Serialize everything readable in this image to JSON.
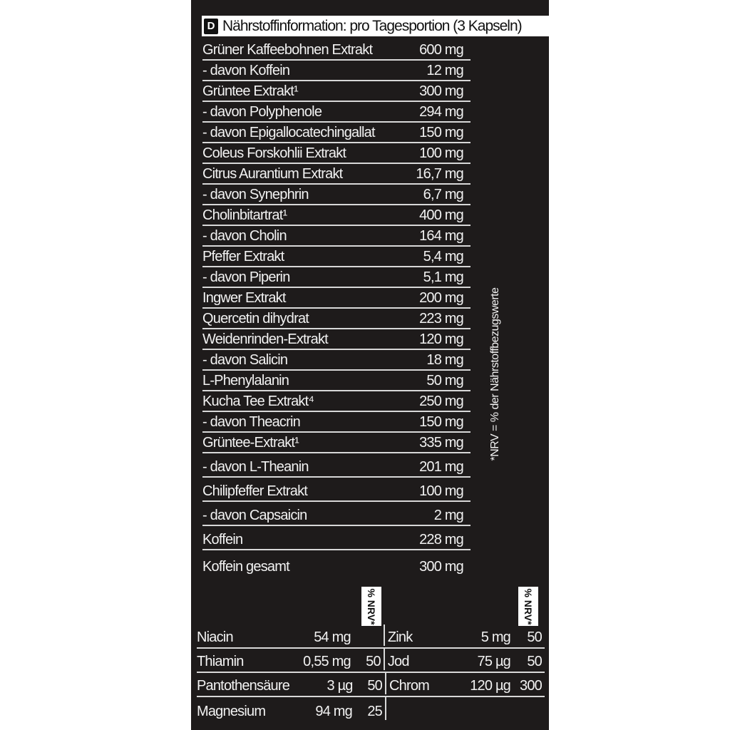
{
  "header": {
    "badge": "D",
    "title": "Nährstoffinformation: pro Tagesportion (3 Kapseln)"
  },
  "ingredients": [
    {
      "name": "Grüner Kaffeebohnen Extrakt",
      "amount": "600 mg"
    },
    {
      "name": " - davon Koffein",
      "amount": "12 mg"
    },
    {
      "name": "Grüntee Extrakt¹",
      "amount": "300 mg"
    },
    {
      "name": " - davon Polyphenole",
      "amount": "294 mg"
    },
    {
      "name": " - davon Epigallocatechingallat",
      "amount": "150 mg"
    },
    {
      "name": "Coleus Forskohlii Extrakt",
      "amount": "100 mg"
    },
    {
      "name": "Citrus Aurantium Extrakt",
      "amount": "16,7 mg"
    },
    {
      "name": " - davon Synephrin",
      "amount": "6,7 mg"
    },
    {
      "name": "Cholinbitartrat¹",
      "amount": "400 mg"
    },
    {
      "name": " - davon Cholin",
      "amount": "164 mg"
    },
    {
      "name": "Pfeffer Extrakt",
      "amount": "5,4 mg"
    },
    {
      "name": " - davon Piperin",
      "amount": "5,1 mg"
    },
    {
      "name": "Ingwer Extrakt",
      "amount": "200 mg"
    },
    {
      "name": "Quercetin dihydrat",
      "amount": "223 mg"
    },
    {
      "name": "Weidenrinden-Extrakt",
      "amount": "120 mg"
    },
    {
      "name": " - davon Salicin",
      "amount": "18 mg"
    },
    {
      "name": "L-Phenylalanin",
      "amount": "50 mg"
    },
    {
      "name": "Kucha Tee Extrakt⁴",
      "amount": "250 mg"
    },
    {
      "name": " - davon Theacrin",
      "amount": "150 mg"
    },
    {
      "name": "Grüntee-Extrakt¹",
      "amount": "335 mg"
    },
    {
      "name": " - davon L-Theanin",
      "amount": "201 mg"
    },
    {
      "name": "Chilipfeffer Extrakt",
      "amount": "100 mg"
    },
    {
      "name": " - davon Capsaicin",
      "amount": "2 mg"
    },
    {
      "name": "Koffein",
      "amount": "228 mg"
    },
    {
      "name": "Koffein gesamt",
      "amount": "300 mg"
    }
  ],
  "nrv_note": "*NRV = % der Nährstoffbezugswerte",
  "nrv_header": "% NRV*",
  "minerals_left": [
    {
      "name": "Niacin",
      "amount": "54 mg",
      "nrv": ""
    },
    {
      "name": "Thiamin",
      "amount": "0,55 mg",
      "nrv": "50"
    },
    {
      "name": "Pantothensäure",
      "amount": "3 µg",
      "nrv": "50"
    },
    {
      "name": "Magnesium",
      "amount": "94 mg",
      "nrv": "25"
    }
  ],
  "minerals_right": [
    {
      "name": "Zink",
      "amount": "5 mg",
      "nrv": "50"
    },
    {
      "name": "Jod",
      "amount": "75 µg",
      "nrv": "50"
    },
    {
      "name": "Chrom",
      "amount": "120 µg",
      "nrv": "300"
    }
  ]
}
